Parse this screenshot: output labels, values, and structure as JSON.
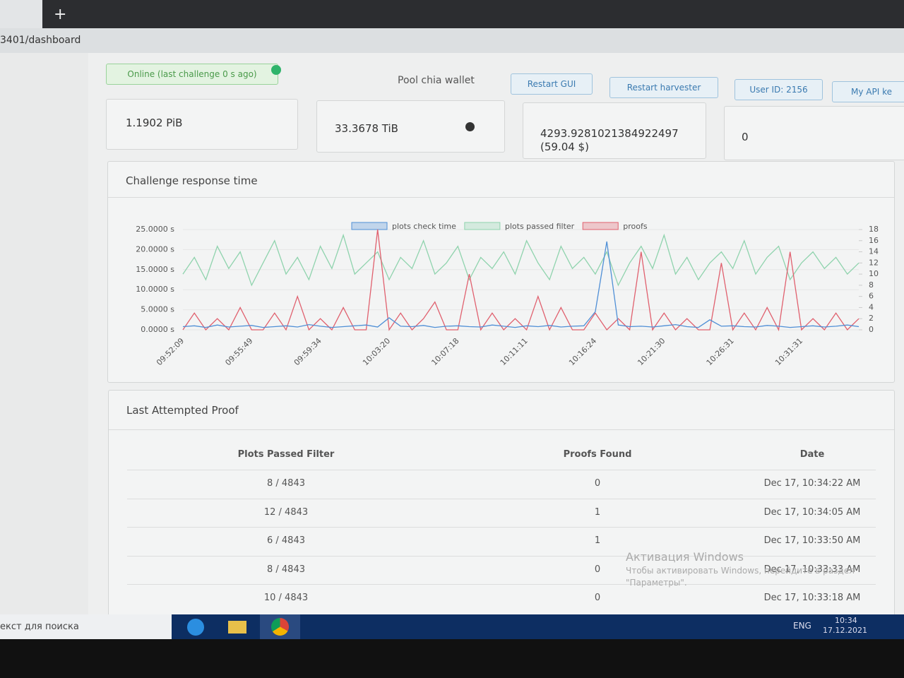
{
  "browser": {
    "url": "3401/dashboard"
  },
  "toolbar": {
    "status": "Online (last challenge 0 s ago)",
    "wallet": "Pool chia wallet",
    "buttons": [
      "Restart GUI",
      "Restart harvester",
      "User ID: 2156",
      "My API ke"
    ]
  },
  "stats": [
    "1.1902 PiB",
    "33.3678 TiB",
    "4293.9281021384922497 (59.04 $)",
    "0"
  ],
  "chart_data": {
    "type": "line",
    "title": "Challenge response time",
    "categories": [
      "09:52:09",
      null,
      null,
      null,
      null,
      null,
      "09:55:49",
      null,
      null,
      null,
      null,
      null,
      "09:59:34",
      null,
      null,
      null,
      null,
      null,
      "10:03:20",
      null,
      null,
      null,
      null,
      null,
      "10:07:18",
      null,
      null,
      null,
      null,
      null,
      "10:11:11",
      null,
      null,
      null,
      null,
      null,
      "10:16:24",
      null,
      null,
      null,
      null,
      null,
      "10:21:30",
      null,
      null,
      null,
      null,
      null,
      "10:26:31",
      null,
      null,
      null,
      null,
      null,
      "10:31:31",
      null,
      null,
      null,
      null,
      null
    ],
    "series": [
      {
        "name": "plots check time",
        "color": "#4f8fd6",
        "axis": "y",
        "values": [
          0.8,
          1.0,
          0.6,
          1.2,
          0.7,
          0.9,
          1.1,
          0.6,
          0.8,
          1.0,
          0.7,
          1.3,
          0.9,
          0.6,
          0.8,
          1.0,
          1.2,
          0.7,
          3.0,
          0.9,
          0.8,
          1.1,
          0.6,
          0.9,
          1.0,
          0.8,
          0.7,
          1.2,
          0.9,
          0.6,
          1.0,
          0.8,
          1.1,
          0.7,
          0.9,
          1.0,
          4.5,
          22.0,
          1.2,
          0.8,
          0.9,
          0.7,
          1.0,
          1.3,
          0.8,
          0.6,
          2.5,
          0.9,
          1.0,
          0.8,
          0.7,
          1.1,
          0.9,
          0.6,
          0.8,
          1.0,
          0.7,
          0.9,
          1.2,
          0.8
        ]
      },
      {
        "name": "plots passed filter",
        "color": "#8fd3ad",
        "axis": "y2",
        "values": [
          10,
          13,
          9,
          15,
          11,
          14,
          8,
          12,
          16,
          10,
          13,
          9,
          15,
          11,
          17,
          10,
          12,
          14,
          9,
          13,
          11,
          16,
          10,
          12,
          15,
          9,
          13,
          11,
          14,
          10,
          16,
          12,
          9,
          15,
          11,
          13,
          10,
          14,
          8,
          12,
          15,
          11,
          17,
          10,
          13,
          9,
          12,
          14,
          11,
          16,
          10,
          13,
          15,
          9,
          12,
          14,
          11,
          13,
          10,
          12
        ]
      },
      {
        "name": "proofs",
        "color": "#e0606e",
        "axis": "y2",
        "values": [
          0,
          3,
          0,
          2,
          0,
          4,
          0,
          0,
          3,
          0,
          6,
          0,
          2,
          0,
          4,
          0,
          0,
          18,
          0,
          3,
          0,
          2,
          5,
          0,
          0,
          10,
          0,
          3,
          0,
          2,
          0,
          6,
          0,
          4,
          0,
          0,
          3,
          0,
          2,
          0,
          14,
          0,
          3,
          0,
          2,
          0,
          0,
          12,
          0,
          3,
          0,
          4,
          0,
          14,
          0,
          2,
          0,
          3,
          0,
          2
        ]
      }
    ],
    "ylim": [
      0,
      25
    ],
    "yticks": [
      {
        "value": 0,
        "label": "0.0000 s"
      },
      {
        "value": 5,
        "label": "5.0000 s"
      },
      {
        "value": 10,
        "label": "10.0000 s"
      },
      {
        "value": 15,
        "label": "15.0000 s"
      },
      {
        "value": 20,
        "label": "20.0000 s"
      },
      {
        "value": 25,
        "label": "25.0000 s"
      }
    ],
    "y2lim": [
      0,
      18
    ],
    "y2ticks": [
      0,
      2,
      4,
      6,
      8,
      10,
      12,
      14,
      16,
      18
    ],
    "legend": "top"
  },
  "proofs_table": {
    "title": "Last Attempted Proof",
    "headers": [
      "Plots Passed Filter",
      "Proofs Found",
      "Date"
    ],
    "rows": [
      [
        "8 / 4843",
        "0",
        "Dec 17, 10:34:22 AM"
      ],
      [
        "12 / 4843",
        "1",
        "Dec 17, 10:34:05 AM"
      ],
      [
        "6 / 4843",
        "1",
        "Dec 17, 10:33:50 AM"
      ],
      [
        "8 / 4843",
        "0",
        "Dec 17, 10:33:33 AM"
      ],
      [
        "10 / 4843",
        "0",
        "Dec 17, 10:33:18 AM"
      ]
    ]
  },
  "watermark": {
    "title": "Активация Windows",
    "text": "Чтобы активировать Windows, перейдите в раздел \"Параметры\"."
  },
  "taskbar": {
    "search": "екст для поиска",
    "lang": "ENG",
    "time": "10:34",
    "date": "17.12.2021"
  }
}
